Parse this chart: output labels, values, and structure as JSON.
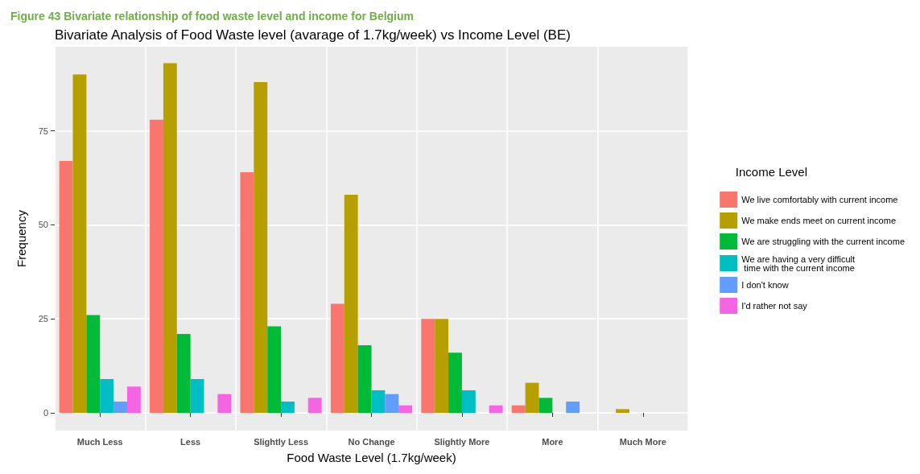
{
  "chart_data": {
    "type": "bar",
    "title": "Bivariate Analysis of Food Waste level (avarage of 1.7kg/week) vs Income Level (BE)",
    "annotations": [
      "Figure 43 Bivariate relationship of food waste level and income for Belgium"
    ],
    "xlabel": "Food Waste Level (1.7kg/week)",
    "ylabel": "Frequency",
    "legend_title": "Income Level",
    "categories": [
      "Much Less",
      "Less",
      "Slightly Less",
      "No Change",
      "Slightly More",
      "More",
      "Much More"
    ],
    "series": [
      {
        "name": "We live comfortably with current income",
        "color": "#f8766d",
        "values": [
          67,
          78,
          64,
          29,
          25,
          2,
          null
        ]
      },
      {
        "name": "We make ends meet on current income",
        "color": "#b79f00",
        "values": [
          90,
          93,
          88,
          58,
          25,
          8,
          1
        ]
      },
      {
        "name": "We are struggling with the current income",
        "color": "#00ba38",
        "values": [
          26,
          21,
          23,
          18,
          16,
          4,
          null
        ]
      },
      {
        "name": "We are having a very difficult\n time with the current income",
        "color": "#00bfc4",
        "values": [
          9,
          9,
          3,
          6,
          6,
          null,
          null
        ]
      },
      {
        "name": "I don't know",
        "color": "#619cff",
        "values": [
          3,
          null,
          null,
          5,
          null,
          3,
          null
        ]
      },
      {
        "name": "I'd rather not say",
        "color": "#f564e3",
        "values": [
          7,
          5,
          4,
          2,
          2,
          null,
          null
        ]
      }
    ],
    "ylim": [
      -4.7,
      97.4
    ],
    "yticks": [
      0,
      25,
      50,
      75
    ],
    "grid": true,
    "legend": "right"
  }
}
